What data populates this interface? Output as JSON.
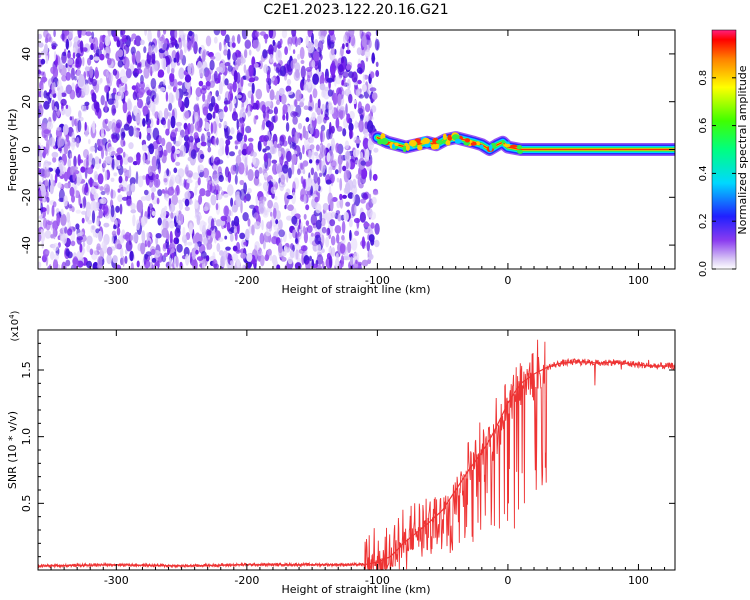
{
  "title": "C2E1.2023.122.20.16.G21",
  "chart_data": [
    {
      "type": "heatmap",
      "xlabel": "Height of straight line (km)",
      "ylabel": "Frequency (Hz)",
      "xlim": [
        -360,
        128
      ],
      "ylim": [
        -50,
        50
      ],
      "x_ticks": [
        -300,
        -200,
        -100,
        0,
        100
      ],
      "y_ticks": [
        -40,
        -20,
        0,
        20,
        40
      ],
      "noise_region": {
        "x_range": [
          -360,
          -100
        ],
        "y_range": [
          -50,
          50
        ]
      },
      "tone_track": [
        {
          "x": -100,
          "y": 5
        },
        {
          "x": -92,
          "y": 3
        },
        {
          "x": -85,
          "y": 2
        },
        {
          "x": -78,
          "y": 1
        },
        {
          "x": -70,
          "y": 2
        },
        {
          "x": -62,
          "y": 3
        },
        {
          "x": -55,
          "y": 2
        },
        {
          "x": -48,
          "y": 4
        },
        {
          "x": -40,
          "y": 5
        },
        {
          "x": -33,
          "y": 4
        },
        {
          "x": -26,
          "y": 3
        },
        {
          "x": -20,
          "y": 2
        },
        {
          "x": -14,
          "y": 0
        },
        {
          "x": -8,
          "y": 2
        },
        {
          "x": -4,
          "y": 3
        },
        {
          "x": 0,
          "y": 1
        },
        {
          "x": 10,
          "y": 0
        },
        {
          "x": 128,
          "y": 0
        }
      ],
      "colorbar": {
        "label": "Normalized spectral amplitude",
        "range": [
          0,
          1
        ],
        "ticks": [
          "0.0",
          "0.2",
          "0.4",
          "0.6",
          "0.8"
        ]
      }
    },
    {
      "type": "line",
      "xlabel": "Height of straight line (km)",
      "ylabel": "SNR (10 * v/v)",
      "exponent_label": "(x10",
      "exponent_sup": "4",
      "exponent_close": ")",
      "xlim": [
        -360,
        128
      ],
      "ylim": [
        0,
        1.8
      ],
      "x_ticks": [
        -300,
        -200,
        -100,
        0,
        100
      ],
      "y_ticks": [
        "0.5",
        "1.0",
        "1.5"
      ],
      "color": "#ee3333",
      "series": [
        {
          "x": [
            -360,
            -300,
            -250,
            -200,
            -150,
            -110,
            -100,
            -90,
            -80,
            -70,
            -60,
            -50,
            -40,
            -30,
            -20,
            -15,
            -10,
            -5,
            0,
            5,
            10,
            20,
            30,
            40,
            50,
            60,
            70,
            80,
            90,
            100,
            110,
            120,
            128
          ],
          "values": [
            0.03,
            0.04,
            0.03,
            0.04,
            0.04,
            0.04,
            0.06,
            0.1,
            0.2,
            0.28,
            0.36,
            0.45,
            0.6,
            0.75,
            0.88,
            0.96,
            1.05,
            1.15,
            1.25,
            1.33,
            1.4,
            1.47,
            1.52,
            1.55,
            1.56,
            1.56,
            1.55,
            1.56,
            1.55,
            1.54,
            1.53,
            1.53,
            1.53
          ]
        }
      ]
    }
  ]
}
